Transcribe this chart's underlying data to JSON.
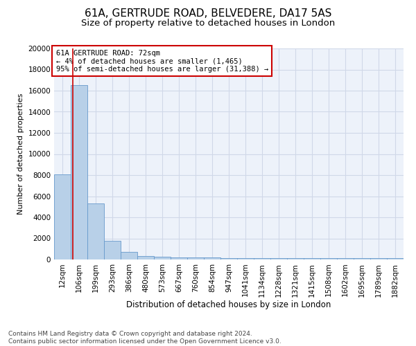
{
  "title": "61A, GERTRUDE ROAD, BELVEDERE, DA17 5AS",
  "subtitle": "Size of property relative to detached houses in London",
  "xlabel": "Distribution of detached houses by size in London",
  "ylabel": "Number of detached properties",
  "annotation_title": "61A GERTRUDE ROAD: 72sqm",
  "annotation_line2": "← 4% of detached houses are smaller (1,465)",
  "annotation_line3": "95% of semi-detached houses are larger (31,388) →",
  "footer_line1": "Contains HM Land Registry data © Crown copyright and database right 2024.",
  "footer_line2": "Contains public sector information licensed under the Open Government Licence v3.0.",
  "categories": [
    "12sqm",
    "106sqm",
    "199sqm",
    "293sqm",
    "386sqm",
    "480sqm",
    "573sqm",
    "667sqm",
    "760sqm",
    "854sqm",
    "947sqm",
    "1041sqm",
    "1134sqm",
    "1228sqm",
    "1321sqm",
    "1415sqm",
    "1508sqm",
    "1602sqm",
    "1695sqm",
    "1789sqm",
    "1882sqm"
  ],
  "values": [
    8050,
    16500,
    5300,
    1800,
    700,
    350,
    270,
    200,
    170,
    170,
    160,
    155,
    145,
    135,
    125,
    150,
    150,
    145,
    140,
    135,
    150
  ],
  "bar_color": "#b8d0e8",
  "bar_edge_color": "#6699cc",
  "vline_color": "#cc0000",
  "annotation_box_color": "#cc0000",
  "ylim": [
    0,
    20000
  ],
  "yticks": [
    0,
    2000,
    4000,
    6000,
    8000,
    10000,
    12000,
    14000,
    16000,
    18000,
    20000
  ],
  "grid_color": "#d0d8e8",
  "bg_color": "#edf2fa",
  "title_fontsize": 11,
  "subtitle_fontsize": 9.5,
  "xlabel_fontsize": 8.5,
  "ylabel_fontsize": 8,
  "tick_fontsize": 7.5,
  "annotation_fontsize": 7.5,
  "footer_fontsize": 6.5
}
